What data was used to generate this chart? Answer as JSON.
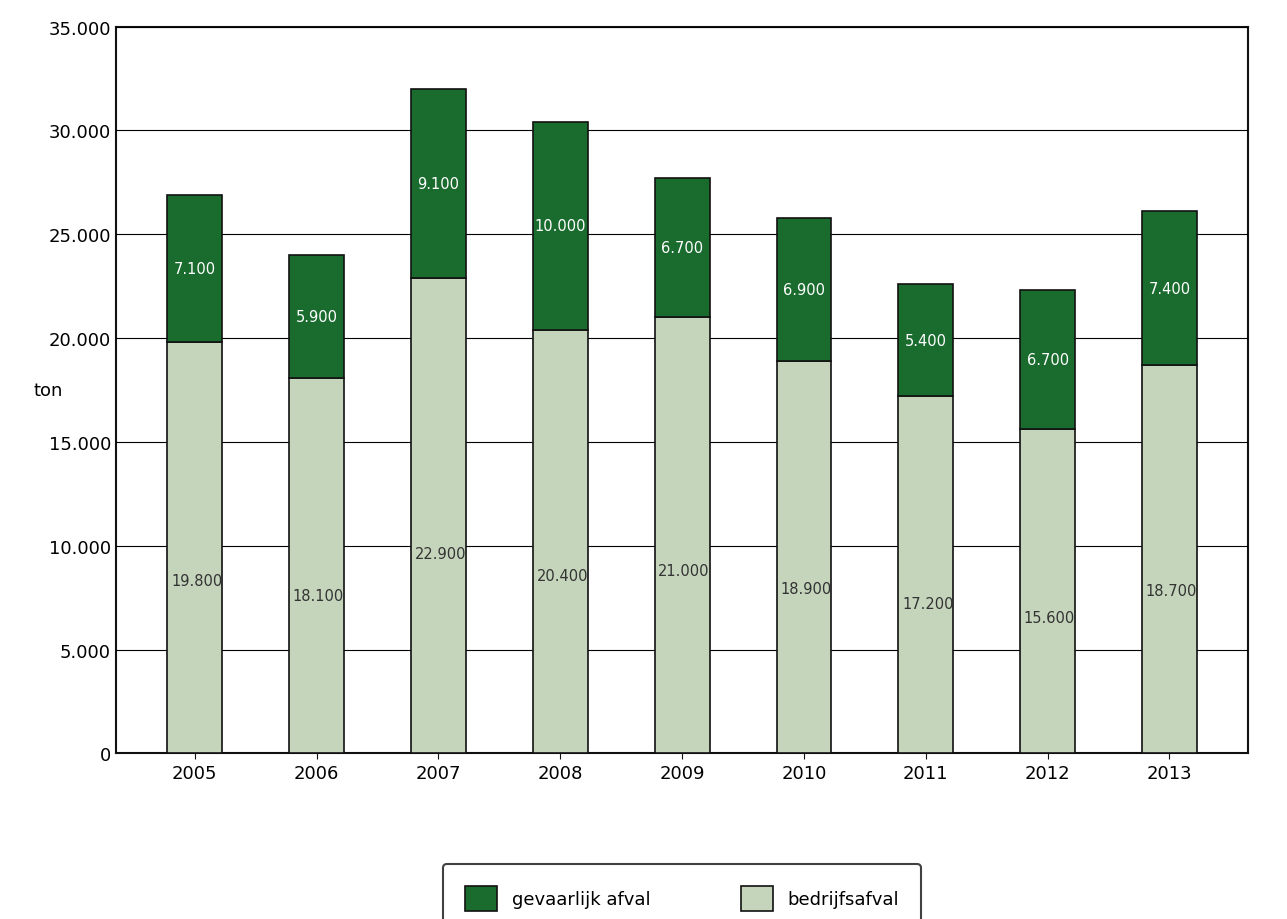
{
  "years": [
    "2005",
    "2006",
    "2007",
    "2008",
    "2009",
    "2010",
    "2011",
    "2012",
    "2013"
  ],
  "bedrijfsafval": [
    19800,
    18100,
    22900,
    20400,
    21000,
    18900,
    17200,
    15600,
    18700
  ],
  "gevaarlijk_afval": [
    7100,
    5900,
    9100,
    10000,
    6700,
    6900,
    5400,
    6700,
    7400
  ],
  "color_bedrijfsafval": "#c5d5bc",
  "color_gevaarlijk": "#1a6b2e",
  "ylabel": "ton",
  "ylim": [
    0,
    35000
  ],
  "yticks": [
    0,
    5000,
    10000,
    15000,
    20000,
    25000,
    30000,
    35000
  ],
  "ytick_labels": [
    "0",
    "5.000",
    "10.000",
    "15.000",
    "20.000",
    "25.000",
    "30.000",
    "35.000"
  ],
  "legend_gevaarlijk": "gevaarlijk afval",
  "legend_bedrijfsafval": "bedrijfsafval",
  "background_color": "#ffffff",
  "bar_edge_color": "#111111",
  "bar_width": 0.45,
  "label_color_gevaarlijk": "#ffffff",
  "label_color_bedrijfsafval": "#333333",
  "label_fontsize": 10.5,
  "axis_fontsize": 13,
  "legend_fontsize": 13,
  "grid_color": "#000000",
  "grid_linewidth": 0.8
}
